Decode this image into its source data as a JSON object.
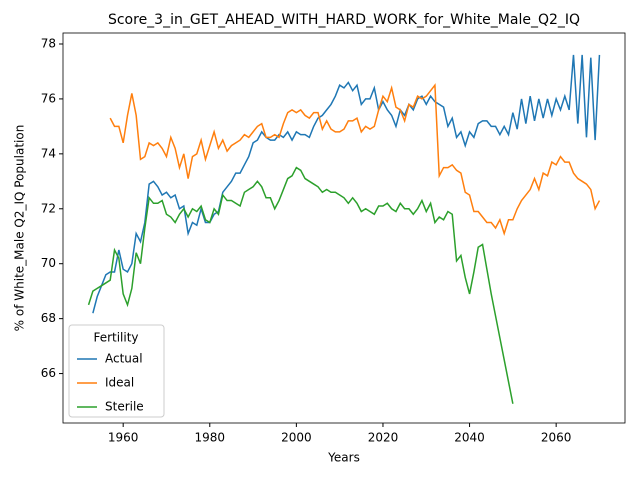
{
  "chart_data": {
    "type": "line",
    "title": "Score_3_in_GET_AHEAD_WITH_HARD_WORK_for_White_Male_Q2_IQ",
    "xlabel": "Years",
    "ylabel": "% of White_Male Q2_IQ Population",
    "legend_title": "Fertility",
    "legend": "lower left",
    "grid": false,
    "xlim": [
      1946.1,
      2075.9
    ],
    "xticks": [
      1960,
      1980,
      2000,
      2020,
      2040,
      2060
    ],
    "ylim": [
      64.2,
      78.4
    ],
    "yticks": [
      66,
      68,
      70,
      72,
      74,
      76,
      78
    ],
    "x": [
      1952,
      1953,
      1954,
      1955,
      1956,
      1957,
      1958,
      1959,
      1960,
      1961,
      1962,
      1963,
      1964,
      1965,
      1966,
      1967,
      1968,
      1969,
      1970,
      1971,
      1972,
      1973,
      1974,
      1975,
      1976,
      1977,
      1978,
      1979,
      1980,
      1981,
      1982,
      1983,
      1984,
      1985,
      1986,
      1987,
      1988,
      1989,
      1990,
      1991,
      1992,
      1993,
      1994,
      1995,
      1996,
      1997,
      1998,
      1999,
      2000,
      2001,
      2002,
      2003,
      2004,
      2005,
      2006,
      2007,
      2008,
      2009,
      2010,
      2011,
      2012,
      2013,
      2014,
      2015,
      2016,
      2017,
      2018,
      2019,
      2020,
      2021,
      2022,
      2023,
      2024,
      2025,
      2026,
      2027,
      2028,
      2029,
      2030,
      2031,
      2032,
      2033,
      2034,
      2035,
      2036,
      2037,
      2038,
      2039,
      2040,
      2041,
      2042,
      2043,
      2044,
      2045,
      2046,
      2047,
      2048,
      2049,
      2050,
      2051,
      2052,
      2053,
      2054,
      2055,
      2056,
      2057,
      2058,
      2059,
      2060,
      2061,
      2062,
      2063,
      2064,
      2065,
      2066,
      2067,
      2068,
      2069,
      2070
    ],
    "series": [
      {
        "name": "Actual",
        "color": "#1f77b4",
        "values": [
          null,
          68.2,
          68.8,
          69.2,
          69.6,
          69.7,
          69.7,
          70.5,
          69.8,
          69.7,
          70.0,
          71.1,
          70.8,
          71.5,
          72.9,
          73.0,
          72.8,
          72.5,
          72.6,
          72.4,
          72.5,
          72.0,
          72.1,
          71.1,
          71.5,
          71.4,
          72.0,
          71.5,
          71.5,
          71.8,
          71.9,
          72.6,
          72.8,
          73.0,
          73.3,
          73.3,
          73.6,
          73.9,
          74.4,
          74.5,
          74.8,
          74.6,
          74.5,
          74.5,
          74.7,
          74.6,
          74.8,
          74.5,
          74.8,
          74.7,
          74.7,
          74.6,
          75.0,
          75.3,
          75.4,
          75.6,
          75.8,
          76.1,
          76.5,
          76.4,
          76.6,
          76.3,
          76.5,
          75.8,
          76.0,
          76.0,
          76.4,
          75.6,
          75.9,
          75.6,
          75.4,
          75.0,
          75.6,
          75.4,
          75.8,
          75.6,
          76.0,
          76.1,
          75.8,
          76.1,
          75.9,
          75.8,
          75.7,
          75.0,
          75.3,
          74.6,
          74.8,
          74.3,
          74.8,
          74.6,
          75.1,
          75.2,
          75.2,
          75.0,
          75.0,
          74.7,
          75.0,
          74.7,
          75.5,
          74.9,
          76.0,
          75.1,
          76.1,
          75.2,
          76.0,
          75.3,
          76.0,
          75.4,
          76.0,
          75.6,
          76.1,
          75.6,
          77.6,
          75.1,
          77.6,
          74.6,
          77.5,
          74.5,
          77.6
        ]
      },
      {
        "name": "Ideal",
        "color": "#ff7f0e",
        "values": [
          null,
          null,
          null,
          null,
          null,
          75.3,
          75.0,
          75.0,
          74.4,
          75.4,
          76.2,
          75.4,
          73.8,
          73.9,
          74.4,
          74.3,
          74.4,
          74.2,
          73.9,
          74.6,
          74.2,
          73.5,
          74.0,
          73.1,
          73.9,
          74.0,
          74.5,
          73.8,
          74.3,
          74.8,
          74.2,
          74.5,
          74.1,
          74.3,
          74.4,
          74.5,
          74.7,
          74.6,
          74.8,
          75.0,
          75.1,
          74.6,
          74.6,
          74.7,
          74.6,
          75.1,
          75.5,
          75.6,
          75.5,
          75.6,
          75.4,
          75.3,
          75.5,
          75.5,
          74.9,
          75.2,
          74.9,
          74.8,
          74.8,
          74.9,
          75.2,
          75.2,
          75.3,
          74.8,
          75.0,
          74.9,
          75.0,
          75.6,
          76.1,
          75.9,
          76.4,
          75.7,
          75.6,
          75.2,
          75.8,
          75.7,
          76.1,
          76.0,
          76.1,
          76.3,
          76.5,
          73.2,
          73.5,
          73.5,
          73.6,
          73.4,
          73.3,
          72.6,
          72.5,
          71.9,
          71.9,
          71.7,
          71.5,
          71.5,
          71.3,
          71.6,
          71.1,
          71.6,
          71.6,
          72.0,
          72.3,
          72.5,
          72.7,
          73.1,
          72.7,
          73.3,
          73.2,
          73.7,
          73.6,
          73.9,
          73.7,
          73.7,
          73.3,
          73.1,
          73.0,
          72.9,
          72.7,
          72.0,
          72.3
        ]
      },
      {
        "name": "Sterile",
        "color": "#2ca02c",
        "values": [
          68.5,
          69.0,
          69.1,
          69.2,
          69.3,
          69.4,
          70.5,
          70.2,
          68.9,
          68.5,
          69.1,
          70.4,
          70.0,
          71.3,
          72.4,
          72.2,
          72.2,
          72.3,
          71.8,
          71.7,
          71.5,
          71.8,
          72.0,
          71.7,
          72.0,
          71.9,
          72.1,
          71.6,
          71.5,
          72.0,
          71.8,
          72.5,
          72.3,
          72.3,
          72.2,
          72.1,
          72.6,
          72.7,
          72.8,
          73.0,
          72.8,
          72.4,
          72.4,
          72.0,
          72.3,
          72.7,
          73.1,
          73.2,
          73.5,
          73.4,
          73.1,
          73.0,
          72.9,
          72.8,
          72.6,
          72.7,
          72.6,
          72.6,
          72.5,
          72.4,
          72.2,
          72.4,
          72.2,
          71.9,
          72.0,
          71.9,
          71.8,
          72.1,
          72.1,
          72.2,
          72.0,
          71.9,
          72.2,
          72.0,
          72.0,
          71.8,
          72.0,
          72.3,
          71.9,
          72.2,
          71.5,
          71.7,
          71.6,
          71.9,
          71.8,
          70.1,
          70.3,
          69.5,
          68.9,
          69.7,
          70.6,
          70.7,
          69.8,
          68.9,
          68.1,
          67.3,
          66.5,
          65.7,
          64.9,
          null,
          null,
          null,
          null,
          null,
          null,
          null,
          null,
          null,
          null,
          null,
          null,
          null,
          null,
          null,
          null,
          null,
          null,
          null,
          null
        ]
      }
    ]
  }
}
